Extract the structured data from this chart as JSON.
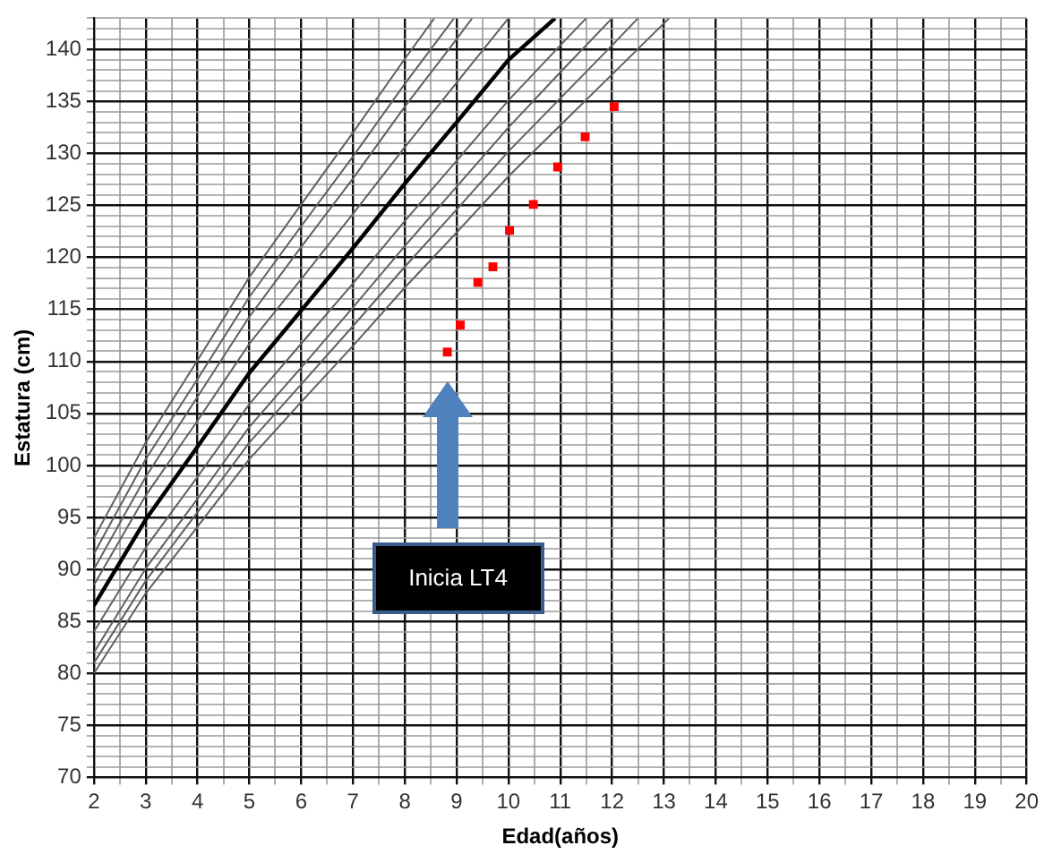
{
  "chart_data": {
    "type": "line",
    "xlabel": "Edad(años)",
    "ylabel": "Estatura (cm)",
    "xlim": [
      2,
      20
    ],
    "ylim": [
      70,
      143
    ],
    "xticks": [
      2,
      {
        "value": 2.5,
        "label": null
      },
      3,
      {
        "value": 3.5,
        "label": null
      },
      4,
      {
        "value": 4.5,
        "label": null
      },
      5,
      {
        "value": 5.5,
        "label": null
      },
      6,
      {
        "value": 6.5,
        "label": null
      },
      7,
      {
        "value": 7.5,
        "label": null
      },
      8,
      {
        "value": 8.5,
        "label": null
      },
      9,
      {
        "value": 9.5,
        "label": null
      },
      10,
      {
        "value": 10.5,
        "label": null
      },
      11,
      {
        "value": 11.5,
        "label": null
      },
      12,
      {
        "value": 12.5,
        "label": null
      },
      13,
      {
        "value": 13.5,
        "label": null
      },
      14,
      {
        "value": 14.5,
        "label": null
      },
      15,
      {
        "value": 15.5,
        "label": null
      },
      16,
      {
        "value": 16.5,
        "label": null
      },
      17,
      {
        "value": 17.5,
        "label": null
      },
      18,
      {
        "value": 18.5,
        "label": null
      },
      19,
      {
        "value": 19.5,
        "label": null
      },
      20
    ],
    "yticks": [
      70,
      {
        "value": 71,
        "label": null
      },
      {
        "value": 72,
        "label": null
      },
      {
        "value": 73,
        "label": null
      },
      {
        "value": 74,
        "label": null
      },
      75,
      {
        "value": 76,
        "label": null
      },
      {
        "value": 77,
        "label": null
      },
      {
        "value": 78,
        "label": null
      },
      {
        "value": 79,
        "label": null
      },
      80,
      {
        "value": 81,
        "label": null
      },
      {
        "value": 82,
        "label": null
      },
      {
        "value": 83,
        "label": null
      },
      {
        "value": 84,
        "label": null
      },
      85,
      {
        "value": 86,
        "label": null
      },
      {
        "value": 87,
        "label": null
      },
      {
        "value": 88,
        "label": null
      },
      {
        "value": 89,
        "label": null
      },
      90,
      {
        "value": 91,
        "label": null
      },
      {
        "value": 92,
        "label": null
      },
      {
        "value": 93,
        "label": null
      },
      {
        "value": 94,
        "label": null
      },
      95,
      {
        "value": 96,
        "label": null
      },
      {
        "value": 97,
        "label": null
      },
      {
        "value": 98,
        "label": null
      },
      {
        "value": 99,
        "label": null
      },
      100,
      {
        "value": 101,
        "label": null
      },
      {
        "value": 102,
        "label": null
      },
      {
        "value": 103,
        "label": null
      },
      {
        "value": 104,
        "label": null
      },
      105,
      {
        "value": 106,
        "label": null
      },
      {
        "value": 107,
        "label": null
      },
      {
        "value": 108,
        "label": null
      },
      {
        "value": 109,
        "label": null
      },
      110,
      {
        "value": 111,
        "label": null
      },
      {
        "value": 112,
        "label": null
      },
      {
        "value": 113,
        "label": null
      },
      {
        "value": 114,
        "label": null
      },
      115,
      {
        "value": 116,
        "label": null
      },
      {
        "value": 117,
        "label": null
      },
      {
        "value": 118,
        "label": null
      },
      {
        "value": 119,
        "label": null
      },
      120,
      {
        "value": 121,
        "label": null
      },
      {
        "value": 122,
        "label": null
      },
      {
        "value": 123,
        "label": null
      },
      {
        "value": 124,
        "label": null
      },
      125,
      {
        "value": 126,
        "label": null
      },
      {
        "value": 127,
        "label": null
      },
      {
        "value": 128,
        "label": null
      },
      {
        "value": 129,
        "label": null
      },
      130,
      {
        "value": 131,
        "label": null
      },
      {
        "value": 132,
        "label": null
      },
      {
        "value": 133,
        "label": null
      },
      {
        "value": 134,
        "label": null
      },
      135,
      {
        "value": 136,
        "label": null
      },
      {
        "value": 137,
        "label": null
      },
      {
        "value": 138,
        "label": null
      },
      {
        "value": 139,
        "label": null
      },
      140,
      {
        "value": 141,
        "label": null
      },
      {
        "value": 142,
        "label": null
      },
      {
        "value": 143,
        "label": null
      }
    ],
    "grid": true,
    "legend": false,
    "marker": "none",
    "line_style": "solid",
    "series": [
      {
        "color": "#606060",
        "x": [
          2,
          3,
          4,
          5,
          6,
          7,
          8,
          8.57
        ],
        "values": [
          93,
          102.2,
          110.1,
          118.1,
          125.1,
          132,
          139.1,
          143
        ]
      },
      {
        "color": "#606060",
        "x": [
          2,
          3,
          4,
          5,
          6,
          7,
          8,
          8.95
        ],
        "values": [
          91.5,
          100.6,
          108.3,
          116.2,
          123,
          129.7,
          136.7,
          143
        ]
      },
      {
        "color": "#606060",
        "x": [
          2,
          3,
          4,
          5,
          6,
          7,
          8,
          9,
          9.3
        ],
        "values": [
          90,
          98.9,
          106.6,
          114.3,
          121,
          127.6,
          134.5,
          141,
          143
        ]
      },
      {
        "color": "#606060",
        "x": [
          2,
          3,
          4,
          5,
          6,
          7,
          8,
          9,
          10
        ],
        "values": [
          88.5,
          97.1,
          104.3,
          111.7,
          117.9,
          124.2,
          130.6,
          136.8,
          143
        ]
      },
      {
        "color": "#000000",
        "x": [
          2,
          3,
          4,
          5,
          6,
          7,
          8,
          9,
          10,
          10.9
        ],
        "values": [
          86.5,
          94.8,
          101.8,
          108.9,
          114.9,
          120.9,
          127.1,
          133,
          139,
          143
        ]
      },
      {
        "color": "#606060",
        "x": [
          2,
          3,
          4,
          5,
          6,
          7,
          8,
          9,
          10,
          11,
          11.5
        ],
        "values": [
          84,
          92.1,
          98.9,
          105.9,
          111.7,
          117.5,
          123.5,
          129.3,
          135.1,
          140.4,
          143
        ]
      },
      {
        "color": "#606060",
        "x": [
          2,
          3,
          4,
          5,
          6,
          7,
          8,
          9,
          10,
          11,
          12
        ],
        "values": [
          82,
          90.1,
          96.8,
          103.7,
          109.4,
          115.2,
          121.1,
          126.8,
          132.5,
          137.8,
          143
        ]
      },
      {
        "color": "#606060",
        "x": [
          2,
          3,
          4,
          5,
          6,
          7,
          8,
          9,
          10,
          11,
          12,
          12.5
        ],
        "values": [
          81,
          88.9,
          95.5,
          102.2,
          107.8,
          113.4,
          119.1,
          124.6,
          130.2,
          135.3,
          140.4,
          143
        ]
      },
      {
        "color": "#606060",
        "x": [
          2,
          3,
          4,
          5,
          6,
          7,
          8,
          9,
          10,
          11,
          12,
          13.1
        ],
        "values": [
          80,
          87.7,
          94.1,
          100.6,
          106.1,
          111.5,
          117.1,
          122.4,
          127.8,
          132.7,
          137.6,
          143
        ]
      },
      {
        "type": "scatter",
        "marker": "square",
        "color": "#ff0000",
        "x": [
          8.82,
          9.07,
          9.41,
          9.7,
          10.02,
          10.48,
          10.95,
          11.48,
          12.04
        ],
        "values": [
          110.9,
          113.5,
          117.6,
          119.1,
          122.6,
          125.1,
          128.7,
          131.6,
          134.5
        ]
      }
    ],
    "annotations": [
      "Inicia LT4"
    ]
  }
}
